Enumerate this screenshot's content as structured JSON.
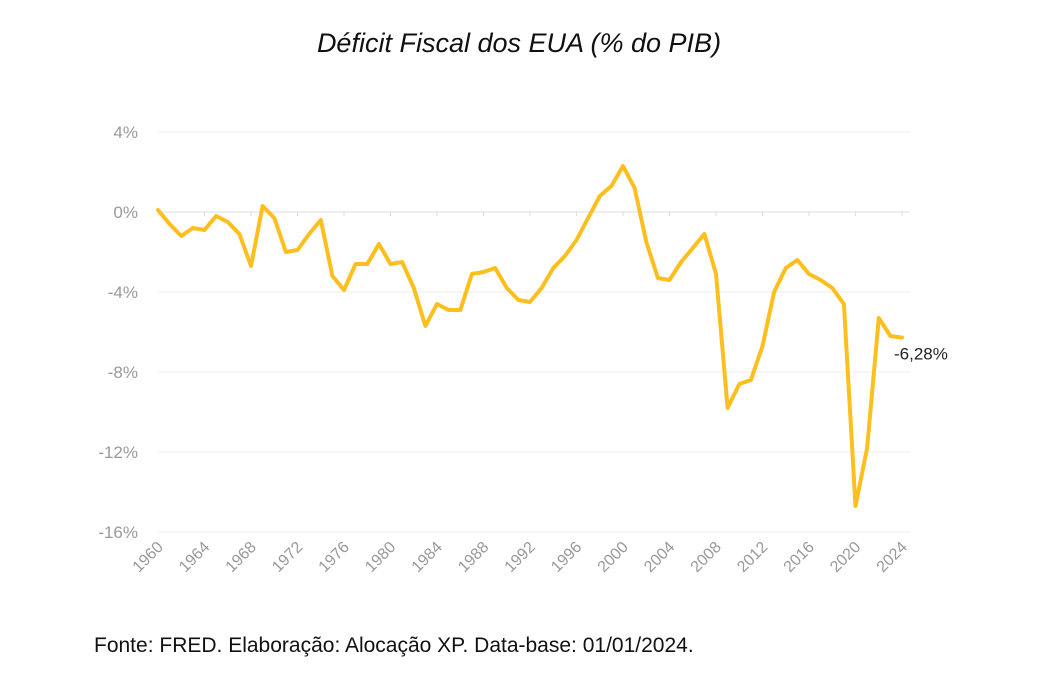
{
  "title": "Déficit Fiscal dos EUA (% do PIB)",
  "source": "Fonte: FRED. Elaboração: Alocação XP. Data-base: 01/01/2024.",
  "colors": {
    "line": "#FCBF1E",
    "grid": "#ececec",
    "tick_text": "#999999"
  },
  "chart_data": {
    "type": "line",
    "title": "Déficit Fiscal dos EUA (% do PIB)",
    "xlabel": "",
    "ylabel": "",
    "xlim": [
      1960,
      2024
    ],
    "ylim": [
      -16,
      4
    ],
    "grid": true,
    "y_ticks": [
      4,
      0,
      -4,
      -8,
      -12,
      -16
    ],
    "y_tick_labels": [
      "4%",
      "0%",
      "-4%",
      "-8%",
      "-12%",
      "-16%"
    ],
    "x_ticks": [
      1960,
      1964,
      1968,
      1972,
      1976,
      1980,
      1984,
      1988,
      1992,
      1996,
      2000,
      2004,
      2008,
      2012,
      2016,
      2020,
      2024
    ],
    "x_tick_labels": [
      "1960",
      "1964",
      "1968",
      "1972",
      "1976",
      "1980",
      "1984",
      "1988",
      "1992",
      "1996",
      "2000",
      "2004",
      "2008",
      "2012",
      "2016",
      "2020",
      "2024"
    ],
    "end_label": "-6,28%",
    "series": [
      {
        "x": [
          1960,
          1961,
          1962,
          1963,
          1964,
          1965,
          1966,
          1967,
          1968,
          1969,
          1970,
          1971,
          1972,
          1973,
          1974,
          1975,
          1976,
          1977,
          1978,
          1979,
          1980,
          1981,
          1982,
          1983,
          1984,
          1985,
          1986,
          1987,
          1988,
          1989,
          1990,
          1991,
          1992,
          1993,
          1994,
          1995,
          1996,
          1997,
          1998,
          1999,
          2000,
          2001,
          2002,
          2003,
          2004,
          2005,
          2006,
          2007,
          2008,
          2009,
          2010,
          2011,
          2012,
          2013,
          2014,
          2015,
          2016,
          2017,
          2018,
          2019,
          2020,
          2021,
          2022,
          2023,
          2024
        ],
        "values": [
          0.1,
          -0.6,
          -1.2,
          -0.8,
          -0.9,
          -0.2,
          -0.5,
          -1.1,
          -2.7,
          0.3,
          -0.3,
          -2.0,
          -1.9,
          -1.1,
          -0.4,
          -3.2,
          -3.9,
          -2.6,
          -2.6,
          -1.6,
          -2.6,
          -2.5,
          -3.8,
          -5.7,
          -4.6,
          -4.9,
          -4.9,
          -3.1,
          -3.0,
          -2.8,
          -3.8,
          -4.4,
          -4.5,
          -3.8,
          -2.8,
          -2.2,
          -1.4,
          -0.3,
          0.8,
          1.3,
          2.3,
          1.2,
          -1.5,
          -3.3,
          -3.4,
          -2.5,
          -1.8,
          -1.1,
          -3.1,
          -9.8,
          -8.6,
          -8.4,
          -6.7,
          -4.0,
          -2.8,
          -2.4,
          -3.1,
          -3.4,
          -3.8,
          -4.6,
          -14.7,
          -11.8,
          -5.3,
          -6.2,
          -6.28
        ]
      }
    ]
  }
}
